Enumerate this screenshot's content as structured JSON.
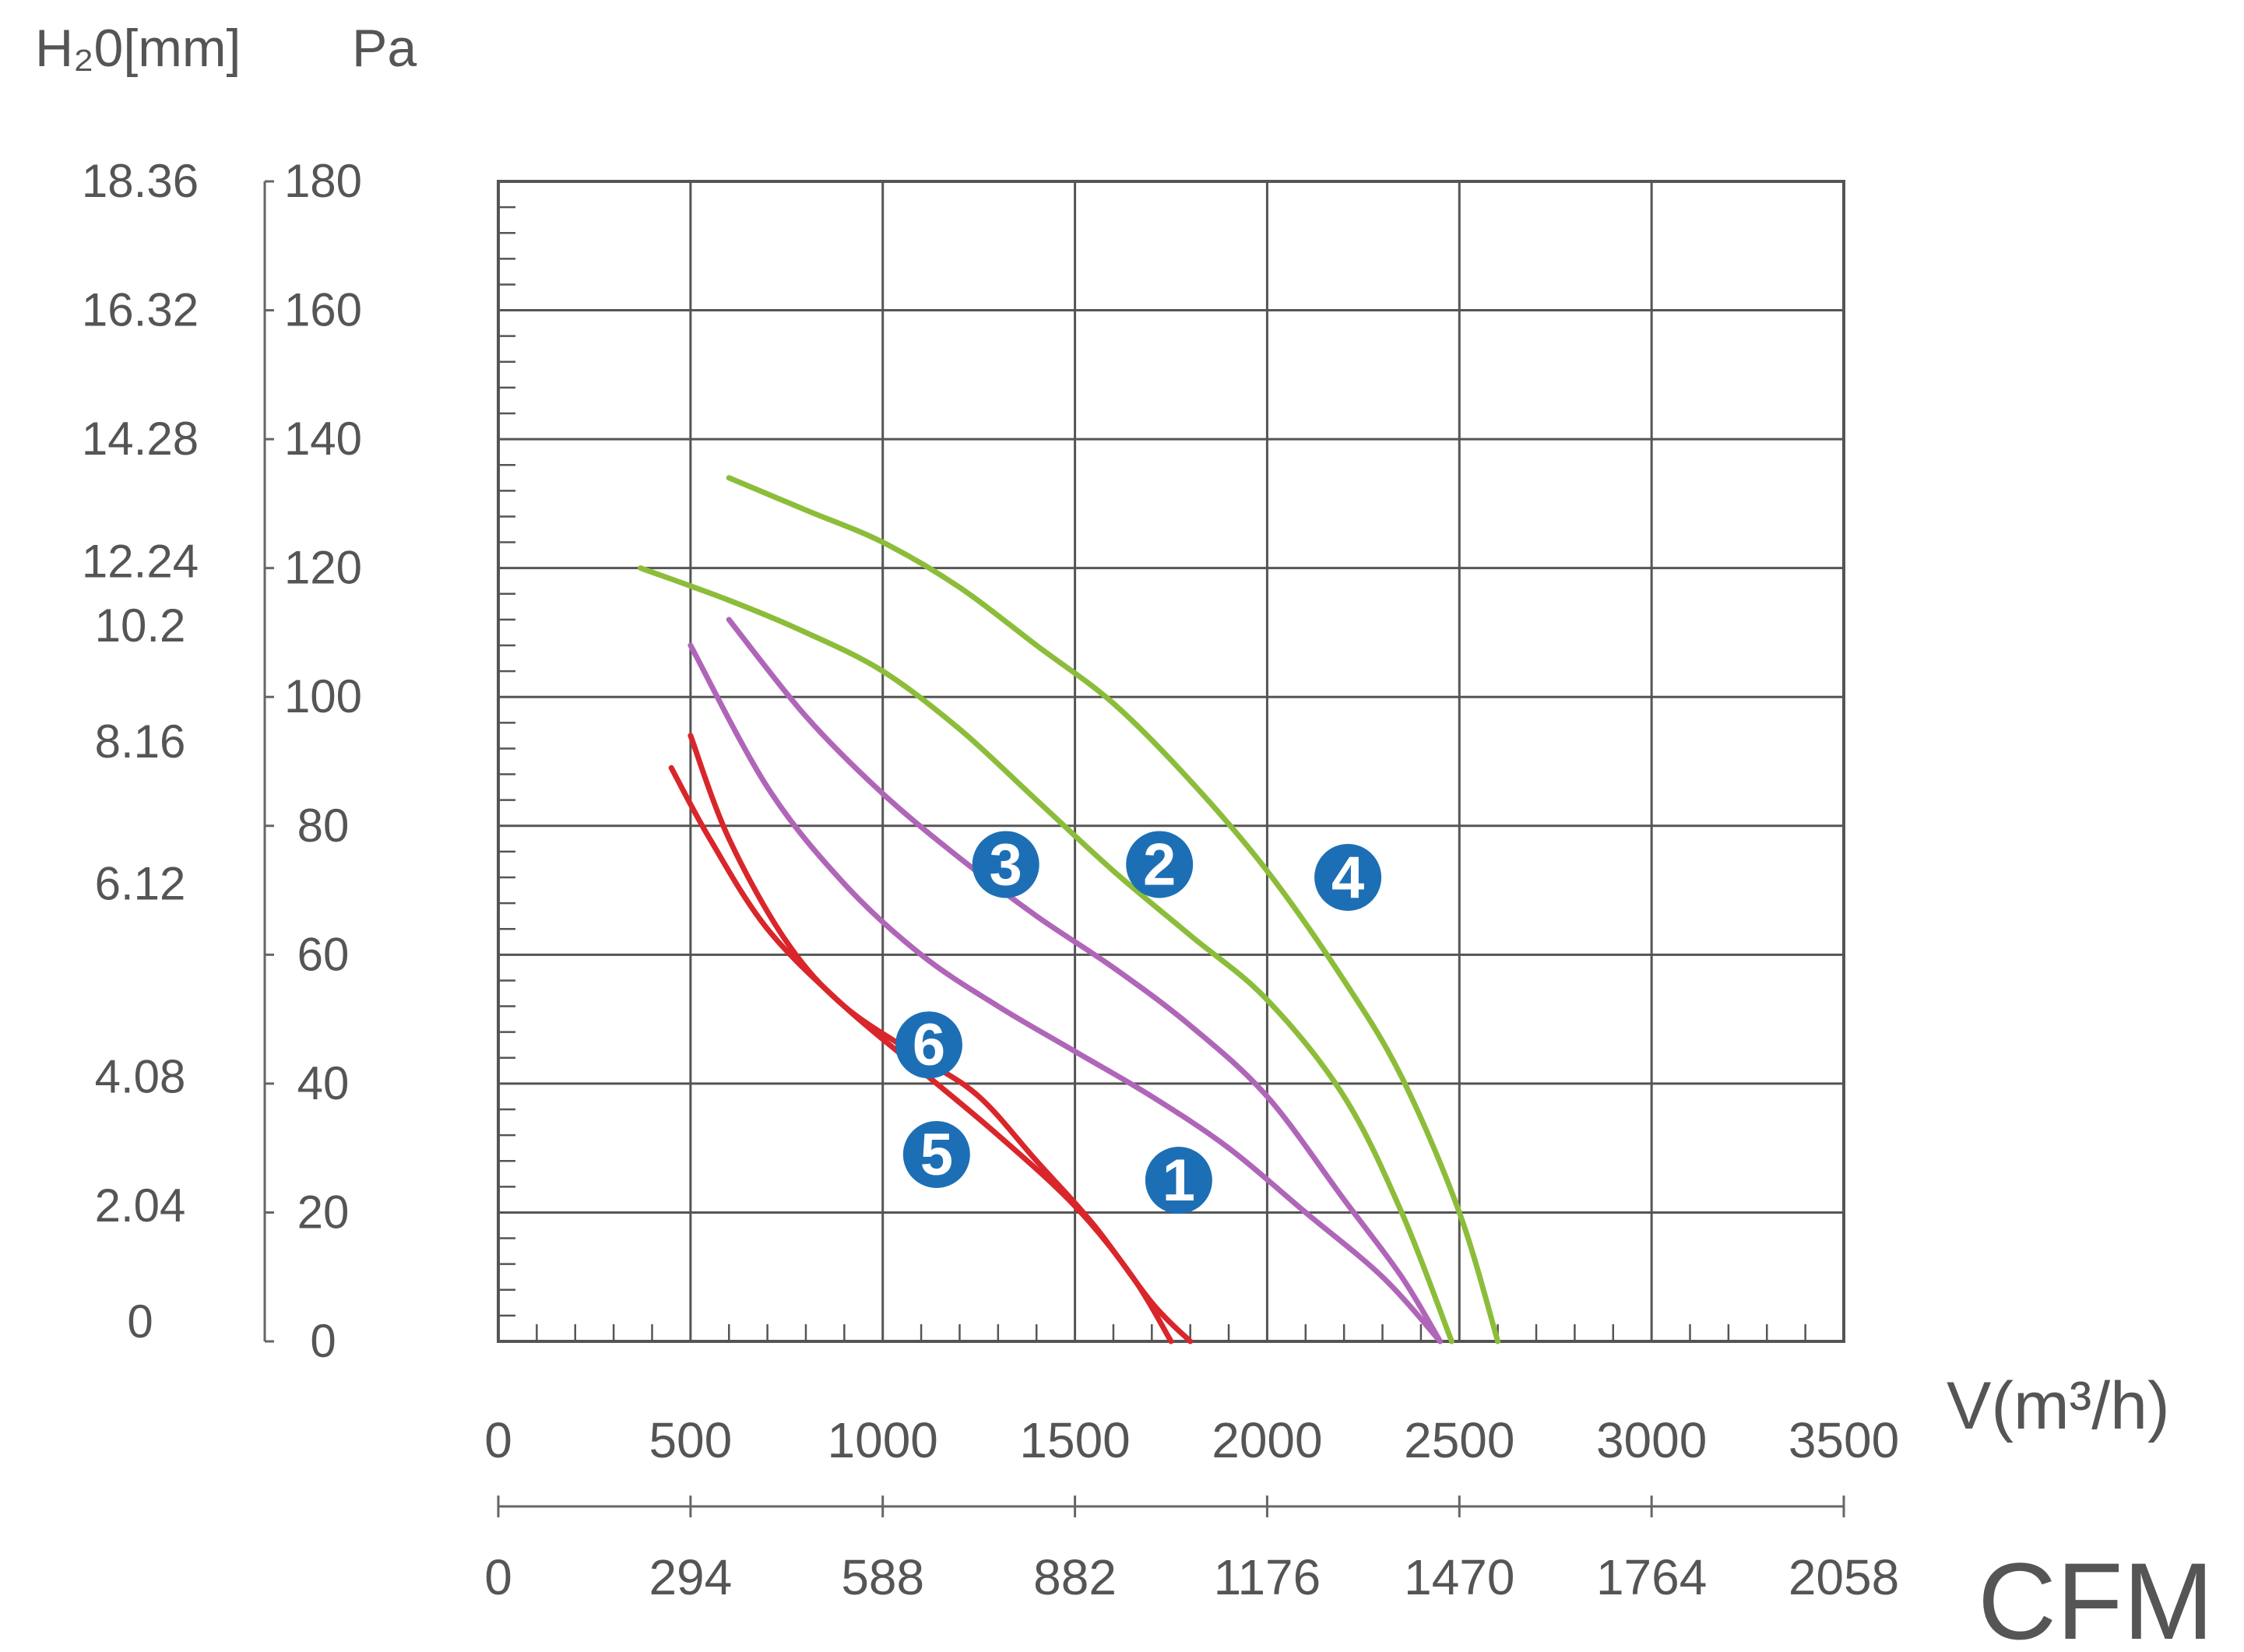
{
  "chart_data": {
    "type": "line",
    "left_axis_unit": "H₂0[mm]",
    "pa_axis_unit": "Pa",
    "xlabel": "V(m³/h)",
    "x2label": "CFM",
    "xlim": [
      0,
      3500
    ],
    "ylim": [
      0,
      180
    ],
    "grid": true,
    "x_ticks": [
      "0",
      "500",
      "1000",
      "1500",
      "2000",
      "2500",
      "3000",
      "3500"
    ],
    "cfm_ticks": [
      "0",
      "294",
      "588",
      "882",
      "1176",
      "1470",
      "1764",
      "2058"
    ],
    "pa_ticks": [
      {
        "value": 180,
        "label": "180"
      },
      {
        "value": 160,
        "label": "160"
      },
      {
        "value": 140,
        "label": "140"
      },
      {
        "value": 120,
        "label": "120"
      },
      {
        "value": 100,
        "label": "100"
      },
      {
        "value": 80,
        "label": "80"
      },
      {
        "value": 60,
        "label": "60"
      },
      {
        "value": 40,
        "label": "40"
      },
      {
        "value": 20,
        "label": "20"
      },
      {
        "value": 0,
        "label": "0"
      }
    ],
    "mm_ticks": [
      {
        "value": 180,
        "label": "18.36"
      },
      {
        "value": 160,
        "label": "16.32"
      },
      {
        "value": 140,
        "label": "14.28"
      },
      {
        "value": 121,
        "label": "12.24"
      },
      {
        "value": 111,
        "label": "10.2"
      },
      {
        "value": 93,
        "label": "8.16"
      },
      {
        "value": 71,
        "label": "6.12"
      },
      {
        "value": 41,
        "label": "4.08"
      },
      {
        "value": 21,
        "label": "2.04"
      },
      {
        "value": 3,
        "label": "0"
      }
    ],
    "series": [
      {
        "name": "1",
        "color": "#b066b8",
        "x": [
          500,
          700,
          900,
          1100,
          1300,
          1500,
          1700,
          1900,
          2100,
          2300,
          2450
        ],
        "y": [
          108,
          86,
          71,
          60,
          52,
          45,
          38,
          30,
          20,
          10,
          0
        ]
      },
      {
        "name": "2",
        "color": "#8cbd3a",
        "x": [
          370,
          600,
          800,
          1000,
          1200,
          1400,
          1600,
          1800,
          2000,
          2200,
          2350,
          2480
        ],
        "y": [
          120,
          115,
          110,
          104,
          95,
          84,
          73,
          63,
          53,
          38,
          20,
          0
        ]
      },
      {
        "name": "3",
        "color": "#b066b8",
        "x": [
          600,
          800,
          1000,
          1200,
          1400,
          1600,
          1800,
          2000,
          2200,
          2350,
          2450
        ],
        "y": [
          112,
          97,
          85,
          75,
          66,
          58,
          49,
          38,
          22,
          10,
          0
        ]
      },
      {
        "name": "4",
        "color": "#8cbd3a",
        "x": [
          600,
          800,
          1000,
          1200,
          1400,
          1600,
          1800,
          2000,
          2200,
          2350,
          2500,
          2600
        ],
        "y": [
          134,
          129,
          124,
          117,
          108,
          99,
          87,
          73,
          56,
          41,
          20,
          0
        ]
      },
      {
        "name": "5",
        "color": "#d9262b",
        "x": [
          450,
          550,
          700,
          900,
          1100,
          1300,
          1500,
          1650,
          1750
        ],
        "y": [
          89,
          78,
          64,
          52,
          42,
          32,
          21,
          10,
          0
        ]
      },
      {
        "name": "6",
        "color": "#d9262b",
        "x": [
          500,
          600,
          750,
          900,
          1100,
          1250,
          1400,
          1550,
          1700,
          1800
        ],
        "y": [
          94,
          78,
          62,
          52,
          44,
          38,
          28,
          18,
          6,
          0
        ]
      }
    ],
    "markers": [
      {
        "label": "3",
        "x": 1320,
        "y": 74
      },
      {
        "label": "2",
        "x": 1720,
        "y": 74
      },
      {
        "label": "4",
        "x": 2210,
        "y": 72
      },
      {
        "label": "6",
        "x": 1120,
        "y": 46
      },
      {
        "label": "5",
        "x": 1140,
        "y": 29
      },
      {
        "label": "1",
        "x": 1770,
        "y": 25
      }
    ]
  }
}
